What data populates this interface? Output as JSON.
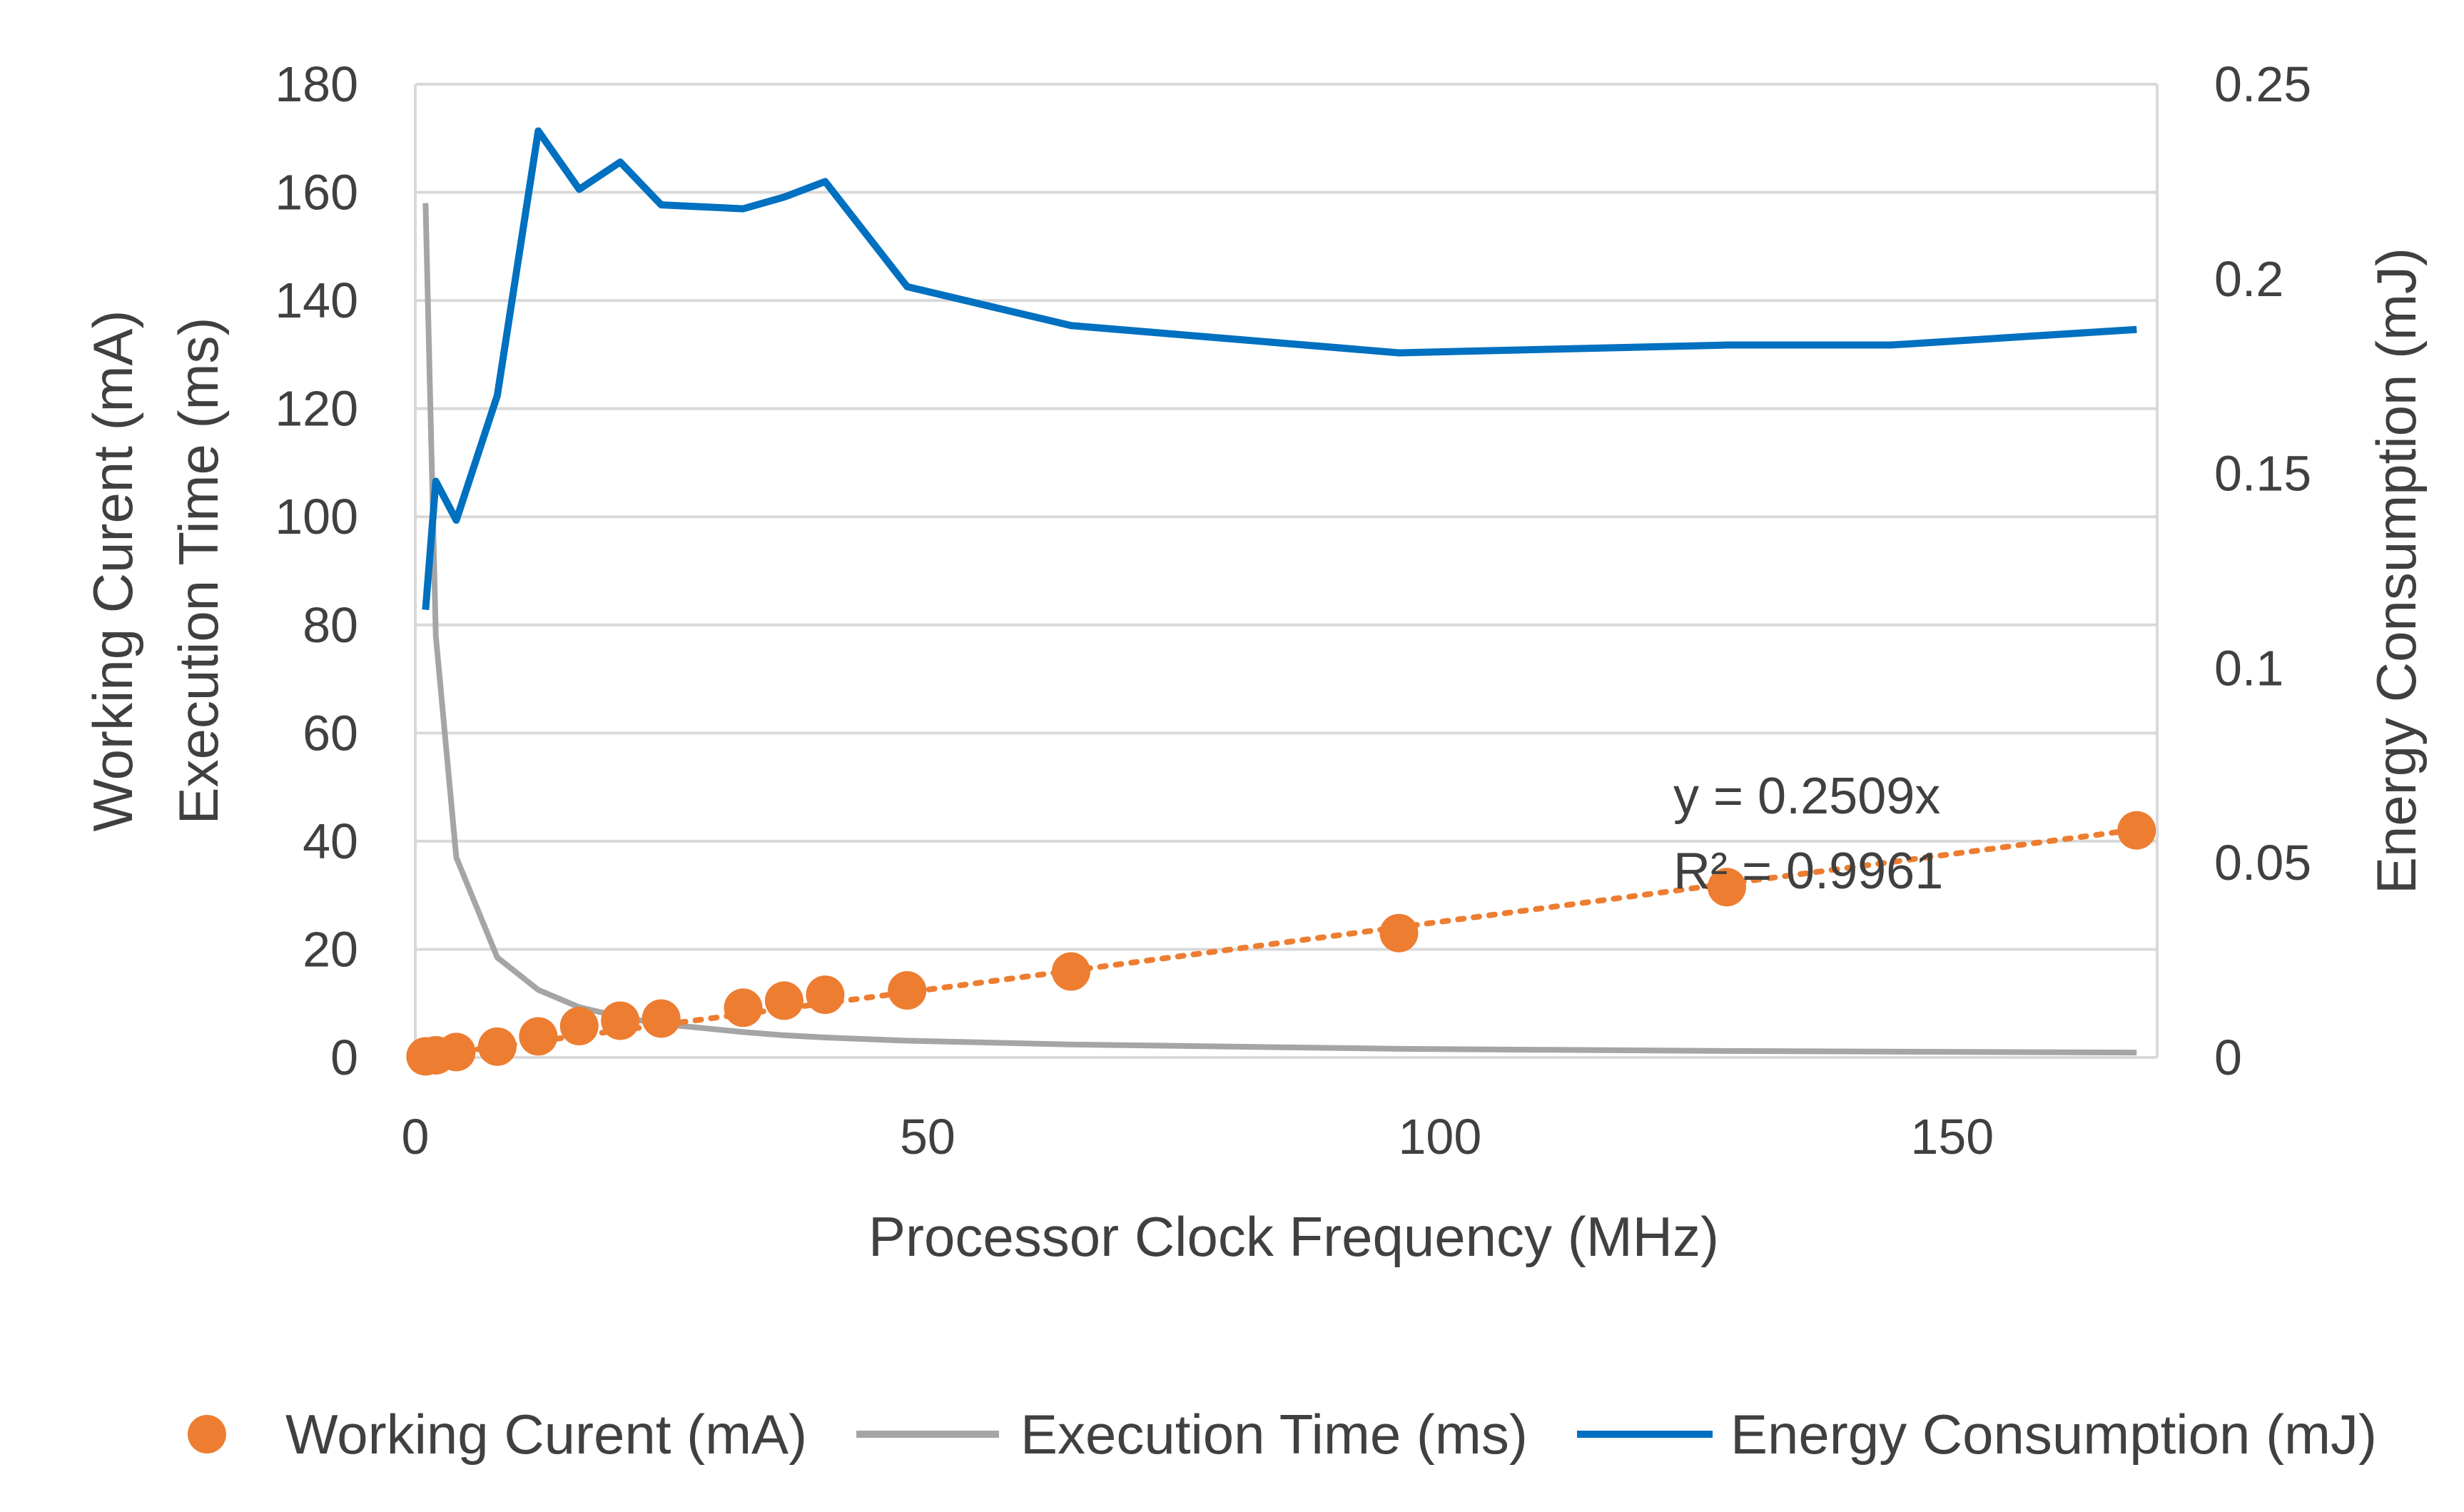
{
  "chart_data": {
    "type": "line",
    "xlabel": "Processor Clock Frequency (MHz)",
    "ylabel_left": [
      "Working Curent (mA)",
      "Execution Time (ms)"
    ],
    "ylabel_right": "Energy Consumption (mJ)",
    "xlim": [
      0,
      170
    ],
    "ylim_left": [
      0,
      180
    ],
    "ylim_right": [
      0,
      0.25
    ],
    "x_ticks": [
      0,
      50,
      100,
      150
    ],
    "y_ticks_left": [
      0,
      20,
      40,
      60,
      80,
      100,
      120,
      140,
      160,
      180
    ],
    "y_ticks_right": [
      "0",
      "0.05",
      "0.1",
      "0.15",
      "0.2",
      "0.25"
    ],
    "grid": true,
    "legend_position": "bottom",
    "series": [
      {
        "name": "Working Curent (mA)",
        "kind": "scatter",
        "axis": "left",
        "color": "#ED7D31",
        "x": [
          1,
          2,
          4,
          8,
          12,
          16,
          20,
          24,
          32,
          36,
          40,
          48,
          64,
          96,
          128,
          168
        ],
        "y": [
          0.2,
          0.4,
          1.0,
          2.0,
          3.9,
          5.8,
          6.8,
          7.2,
          9.2,
          10.5,
          11.6,
          12.4,
          15.9,
          23.0,
          31.5,
          42.0
        ]
      },
      {
        "name": "Execution Time (ms)",
        "kind": "line",
        "axis": "left",
        "color": "#A5A5A5",
        "x": [
          1,
          2,
          4,
          8,
          12,
          16,
          20,
          24,
          32,
          36,
          40,
          48,
          64,
          96,
          128,
          168
        ],
        "y": [
          158,
          78,
          37,
          18.5,
          12.5,
          9.3,
          7.5,
          6.2,
          4.7,
          4.1,
          3.7,
          3.1,
          2.4,
          1.6,
          1.2,
          0.9
        ]
      },
      {
        "name": "Energy Consumption (mJ)",
        "kind": "line",
        "axis": "right",
        "color": "#0070C0",
        "x": [
          1,
          2,
          4,
          8,
          12,
          16,
          20,
          24,
          32,
          36,
          40,
          48,
          64,
          96,
          128,
          144,
          168
        ],
        "y": [
          0.115,
          0.148,
          0.138,
          0.17,
          0.238,
          0.223,
          0.23,
          0.219,
          0.218,
          0.221,
          0.225,
          0.198,
          0.188,
          0.181,
          0.183,
          0.183,
          0.187
        ]
      }
    ],
    "trendline": {
      "series": "Working Curent (mA)",
      "style": "dotted",
      "color": "#ED7D31",
      "slope": 0.2509,
      "x_range": [
        0,
        168
      ],
      "equation": "y = 0.2509x",
      "r_squared": "R² = 0.9961"
    }
  }
}
